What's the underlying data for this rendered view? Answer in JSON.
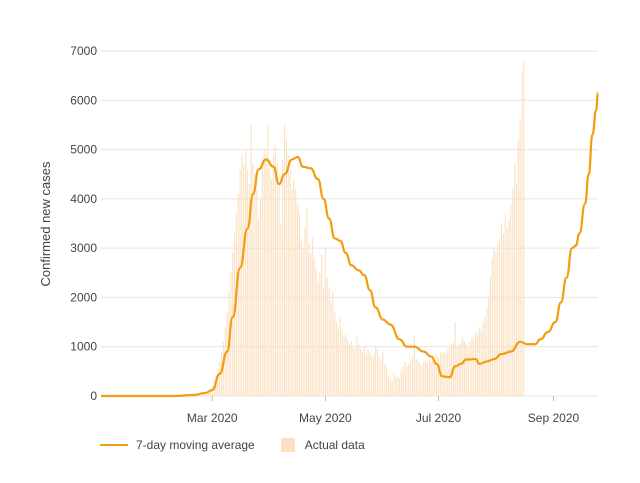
{
  "chart_data": {
    "type": "bar",
    "title": "",
    "ylabel": "Confirmed new cases",
    "xlabel": "",
    "ylim": [
      0,
      7000
    ],
    "yticks": [
      0,
      1000,
      2000,
      3000,
      4000,
      5000,
      6000,
      7000
    ],
    "x_start": "2020-01-01",
    "x_end": "2020-09-25",
    "xticks": [
      {
        "date": "2020-03-01",
        "label": "Mar 2020"
      },
      {
        "date": "2020-05-01",
        "label": "May 2020"
      },
      {
        "date": "2020-07-01",
        "label": "Jul 2020"
      },
      {
        "date": "2020-09-01",
        "label": "Sep 2020"
      }
    ],
    "grid": true,
    "legend_position": "bottom-left",
    "series": [
      {
        "name": "7-day moving average",
        "type": "line",
        "color": "#f39c12",
        "points": [
          [
            "2020-01-01",
            0
          ],
          [
            "2020-02-10",
            0
          ],
          [
            "2020-02-20",
            20
          ],
          [
            "2020-02-26",
            60
          ],
          [
            "2020-03-01",
            120
          ],
          [
            "2020-03-05",
            450
          ],
          [
            "2020-03-09",
            900
          ],
          [
            "2020-03-12",
            1600
          ],
          [
            "2020-03-16",
            2600
          ],
          [
            "2020-03-20",
            3400
          ],
          [
            "2020-03-23",
            4100
          ],
          [
            "2020-03-26",
            4600
          ],
          [
            "2020-03-30",
            4800
          ],
          [
            "2020-04-03",
            4650
          ],
          [
            "2020-04-06",
            4300
          ],
          [
            "2020-04-09",
            4500
          ],
          [
            "2020-04-13",
            4800
          ],
          [
            "2020-04-16",
            4850
          ],
          [
            "2020-04-19",
            4650
          ],
          [
            "2020-04-23",
            4620
          ],
          [
            "2020-04-27",
            4400
          ],
          [
            "2020-04-30",
            4000
          ],
          [
            "2020-05-03",
            3600
          ],
          [
            "2020-05-06",
            3200
          ],
          [
            "2020-05-09",
            3150
          ],
          [
            "2020-05-12",
            2900
          ],
          [
            "2020-05-15",
            2650
          ],
          [
            "2020-05-19",
            2550
          ],
          [
            "2020-05-22",
            2450
          ],
          [
            "2020-05-25",
            2150
          ],
          [
            "2020-05-28",
            1800
          ],
          [
            "2020-06-01",
            1550
          ],
          [
            "2020-06-05",
            1450
          ],
          [
            "2020-06-10",
            1150
          ],
          [
            "2020-06-14",
            1000
          ],
          [
            "2020-06-18",
            1000
          ],
          [
            "2020-06-23",
            900
          ],
          [
            "2020-06-27",
            800
          ],
          [
            "2020-06-30",
            650
          ],
          [
            "2020-07-03",
            400
          ],
          [
            "2020-07-07",
            380
          ],
          [
            "2020-07-10",
            600
          ],
          [
            "2020-07-13",
            650
          ],
          [
            "2020-07-16",
            740
          ],
          [
            "2020-07-21",
            750
          ],
          [
            "2020-07-23",
            650
          ],
          [
            "2020-07-27",
            700
          ],
          [
            "2020-07-31",
            750
          ],
          [
            "2020-08-04",
            850
          ],
          [
            "2020-08-09",
            900
          ],
          [
            "2020-08-14",
            1100
          ],
          [
            "2020-08-18",
            1050
          ],
          [
            "2020-08-22",
            1050
          ],
          [
            "2020-08-25",
            1150
          ],
          [
            "2020-08-29",
            1300
          ],
          [
            "2020-09-02",
            1500
          ],
          [
            "2020-09-05",
            1900
          ],
          [
            "2020-09-08",
            2400
          ],
          [
            "2020-09-11",
            3000
          ],
          [
            "2020-09-13",
            3050
          ],
          [
            "2020-09-15",
            3300
          ],
          [
            "2020-09-18",
            3900
          ],
          [
            "2020-09-20",
            4500
          ],
          [
            "2020-09-22",
            5300
          ],
          [
            "2020-09-24",
            5800
          ],
          [
            "2020-09-25",
            6150
          ]
        ]
      },
      {
        "name": "Actual data",
        "type": "bar",
        "color": "#fbe1c2",
        "daily_values": [
          0,
          0,
          0,
          0,
          0,
          0,
          0,
          0,
          0,
          0,
          0,
          0,
          0,
          0,
          0,
          0,
          0,
          0,
          0,
          0,
          0,
          0,
          0,
          0,
          0,
          0,
          0,
          0,
          0,
          0,
          0,
          0,
          0,
          0,
          0,
          0,
          0,
          0,
          0,
          0,
          0,
          0,
          0,
          0,
          0,
          0,
          0,
          0,
          0,
          10,
          15,
          20,
          25,
          30,
          40,
          50,
          60,
          75,
          90,
          130,
          200,
          300,
          400,
          550,
          700,
          900,
          1100,
          1400,
          1700,
          2100,
          2500,
          2900,
          3300,
          3700,
          4100,
          4600,
          4900,
          4700,
          5000,
          4600,
          4300,
          5500,
          4700,
          4500,
          4200,
          3600,
          4000,
          4800,
          5000,
          4900,
          5500,
          4600,
          4400,
          4900,
          5100,
          4700,
          4300,
          3500,
          4800,
          5500,
          5200,
          4900,
          4600,
          4200,
          4400,
          4200,
          3900,
          3700,
          3200,
          3000,
          3400,
          3800,
          3100,
          2900,
          3200,
          2800,
          2600,
          2300,
          2500,
          2900,
          2200,
          3000,
          2400,
          2200,
          1900,
          2100,
          1700,
          1500,
          1400,
          1600,
          1350,
          1200,
          1250,
          1150,
          1050,
          1100,
          1000,
          950,
          1200,
          1050,
          950,
          900,
          1000,
          850,
          950,
          900,
          800,
          850,
          1000,
          950,
          800,
          700,
          900,
          650,
          600,
          400,
          350,
          300,
          450,
          380,
          400,
          350,
          520,
          600,
          700,
          600,
          650,
          700,
          800,
          1200,
          750,
          700,
          650,
          600,
          700,
          720,
          680,
          750,
          700,
          800,
          850,
          820,
          780,
          900,
          850,
          900,
          880,
          950,
          1000,
          1050,
          1100,
          1500,
          1000,
          1050,
          1100,
          1200,
          1100,
          1050,
          1000,
          1100,
          1200,
          1150,
          1300,
          1250,
          1400,
          1350,
          1500,
          1600,
          1800,
          2000,
          2400,
          2800,
          3000,
          2900,
          3100,
          3200,
          3500,
          3300,
          3700,
          3400,
          3600,
          3900,
          4200,
          4700,
          4300,
          5200,
          5600,
          6600,
          6800
        ]
      }
    ]
  },
  "legend": {
    "line_label": "7-day moving average",
    "box_label": "Actual data"
  }
}
